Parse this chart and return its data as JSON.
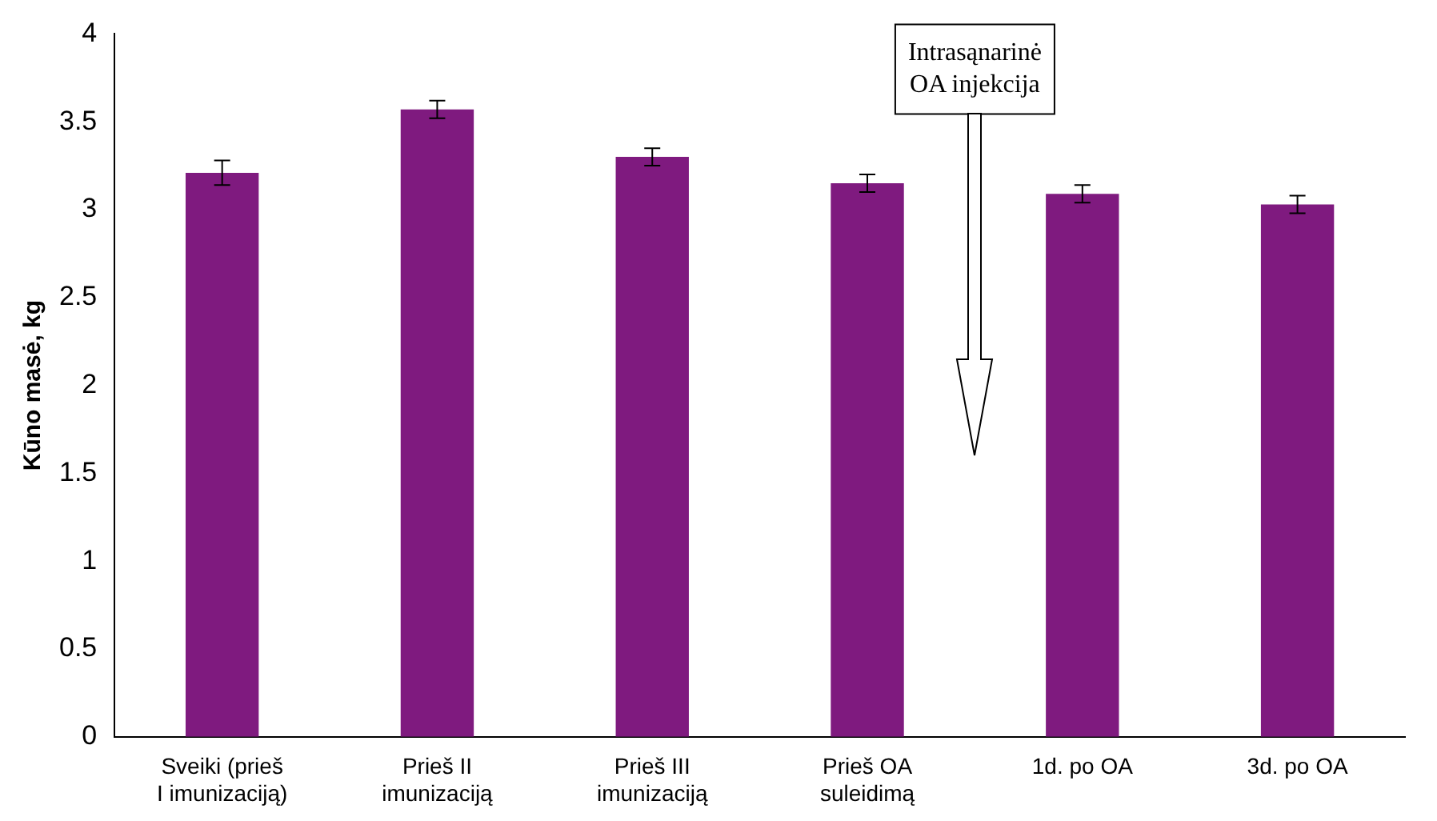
{
  "chart_data": {
    "type": "bar",
    "ylabel": "Kūno masė, kg",
    "categories": [
      "Sveiki (prieš I imunizaciją)",
      "Prieš II imunizaciją",
      "Prieš III imunizaciją",
      "Prieš OA suleidimą",
      "1d. po OA",
      "3d. po OA"
    ],
    "values": [
      3.21,
      3.57,
      3.3,
      3.15,
      3.09,
      3.03
    ],
    "errors": [
      0.07,
      0.05,
      0.05,
      0.05,
      0.05,
      0.05
    ],
    "color": "#7f1a7f",
    "ylim": [
      0,
      4
    ],
    "yticks": [
      0,
      0.5,
      1,
      1.5,
      2,
      2.5,
      3,
      3.5,
      4
    ],
    "grid": false,
    "legend": false,
    "annotations": [
      "Intrasąnarinė OA injekcija"
    ]
  }
}
